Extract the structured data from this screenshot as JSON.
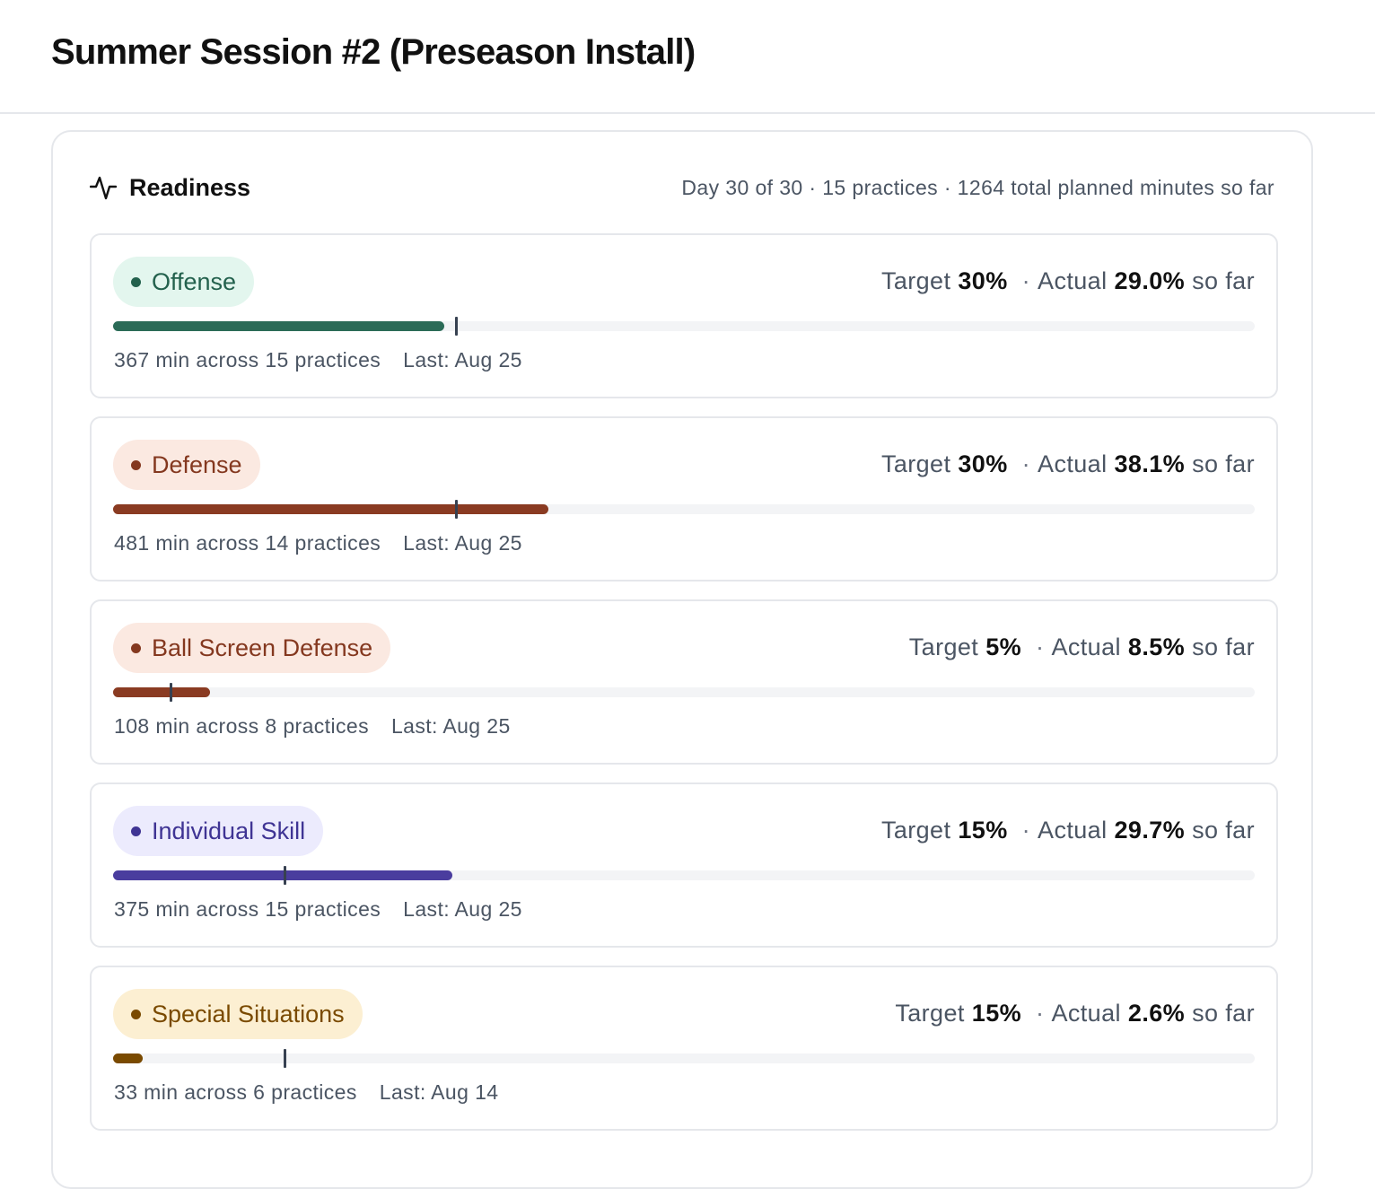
{
  "page": {
    "title": "Summer Session #2 (Preseason Install)"
  },
  "readiness": {
    "title": "Readiness",
    "icon": "activity-pulse-icon",
    "summary": "Day 30 of 30 · 15 practices · 1264 total planned minutes so far",
    "labels": {
      "target": "Target",
      "actual": "Actual",
      "so_far": "so far",
      "separator": "·"
    },
    "categories": [
      {
        "name": "Offense",
        "target": "30%",
        "actual": "29.0%",
        "target_fraction": 0.3,
        "actual_fraction": 0.29,
        "minutes_text": "367 min across 15 practices",
        "last_text": "Last: Aug 25",
        "color": "#2b6b57",
        "pill_bg": "#e3f6ee",
        "pill_text": "#23614d"
      },
      {
        "name": "Defense",
        "target": "30%",
        "actual": "38.1%",
        "target_fraction": 0.3,
        "actual_fraction": 0.381,
        "minutes_text": "481 min across 14 practices",
        "last_text": "Last: Aug 25",
        "color": "#8a3b22",
        "pill_bg": "#fbe9e1",
        "pill_text": "#84381f"
      },
      {
        "name": "Ball Screen Defense",
        "target": "5%",
        "actual": "8.5%",
        "target_fraction": 0.05,
        "actual_fraction": 0.085,
        "minutes_text": "108 min across 8 practices",
        "last_text": "Last: Aug 25",
        "color": "#8a3b22",
        "pill_bg": "#fbe9e1",
        "pill_text": "#84381f"
      },
      {
        "name": "Individual Skill",
        "target": "15%",
        "actual": "29.7%",
        "target_fraction": 0.15,
        "actual_fraction": 0.297,
        "minutes_text": "375 min across 15 practices",
        "last_text": "Last: Aug 25",
        "color": "#4a3d9e",
        "pill_bg": "#ecebfd",
        "pill_text": "#3f3494"
      },
      {
        "name": "Special Situations",
        "target": "15%",
        "actual": "2.6%",
        "target_fraction": 0.15,
        "actual_fraction": 0.026,
        "minutes_text": "33 min across 6 practices",
        "last_text": "Last: Aug 14",
        "color": "#7a4a00",
        "pill_bg": "#fcefd2",
        "pill_text": "#7a4a00"
      }
    ]
  }
}
